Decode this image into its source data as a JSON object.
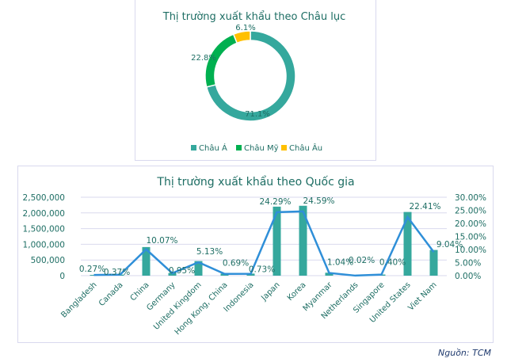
{
  "source": "Nguồn: TCM",
  "chart_data": [
    {
      "type": "pie",
      "donut": true,
      "title": "Thị trường xuất khẩu theo Châu lục",
      "categories": [
        "Châu Á",
        "Châu Mỹ",
        "Châu Âu"
      ],
      "values": [
        71.1,
        22.8,
        6.1
      ],
      "labels": [
        "71.1%",
        "22.8%",
        "6.1%"
      ],
      "colors": [
        "#35a89d",
        "#00b050",
        "#ffc000"
      ],
      "legend": "bottom"
    },
    {
      "type": "bar+line",
      "title": "Thị trường xuất khẩu theo Quốc gia",
      "categories": [
        "Bangladesh",
        "Canada",
        "China",
        "Germany",
        "United Kingdom",
        "Hong Kong, China",
        "Indonesia",
        "Japan",
        "Korea",
        "Myanmar",
        "Netherlands",
        "Singapore",
        "United States",
        "Viet Nam"
      ],
      "series": [
        {
          "type": "bar",
          "axis": "left",
          "color": "#35a89d",
          "values": [
            24500,
            33500,
            912000,
            86000,
            465000,
            62500,
            66000,
            2200000,
            2228000,
            94000,
            1800,
            36000,
            2030000,
            819000
          ]
        },
        {
          "type": "line",
          "axis": "right",
          "color": "#2f8fd8",
          "values": [
            0.27,
            0.37,
            10.07,
            0.95,
            5.13,
            0.69,
            0.73,
            24.29,
            24.59,
            1.04,
            0.02,
            0.4,
            22.41,
            9.04
          ],
          "labels": [
            "0.27%",
            "0.37%",
            "10.07%",
            "0.95%",
            "5.13%",
            "0.69%",
            "0.73%",
            "24.29%",
            "24.59%",
            "1.04%",
            "0.02%",
            "0.40%",
            "22.41%",
            "9.04%"
          ]
        }
      ],
      "ylim_left": [
        0,
        2500000
      ],
      "yticks_left": [
        "0",
        "500,000",
        "1,000,000",
        "1,500,000",
        "2,000,000",
        "2,500,000"
      ],
      "ylim_right": [
        0,
        30
      ],
      "yticks_right": [
        "0.00%",
        "5.00%",
        "10.00%",
        "15.00%",
        "20.00%",
        "25.00%",
        "30.00%"
      ],
      "grid": true
    }
  ]
}
